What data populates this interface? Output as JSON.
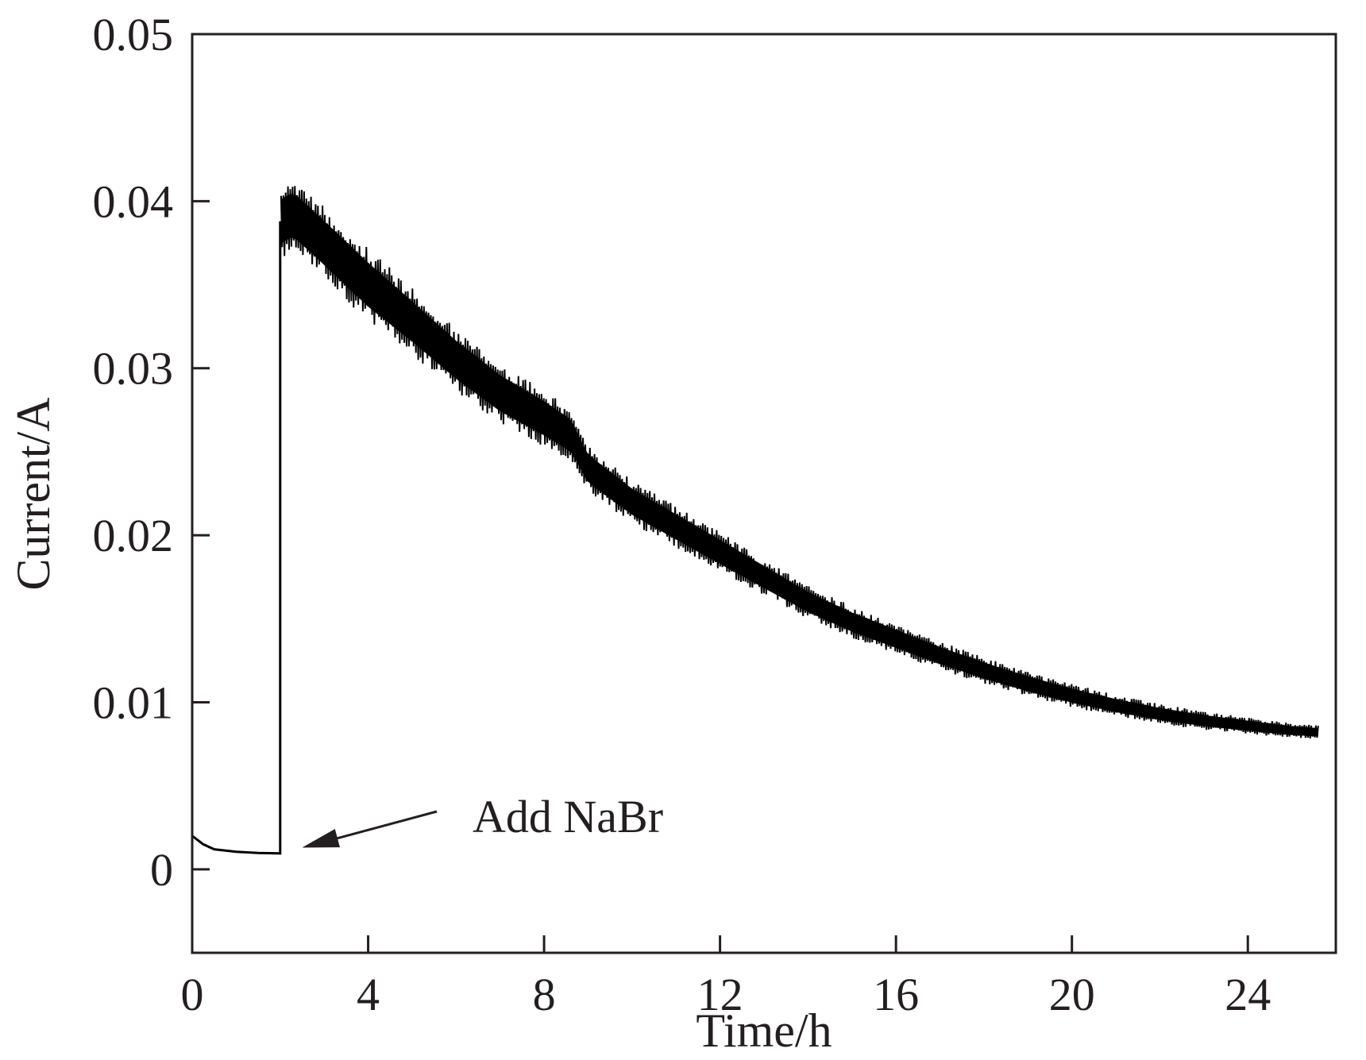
{
  "chart_data": {
    "type": "line",
    "title": "",
    "xlabel": "Time/h",
    "ylabel": "Current/A",
    "xlim": [
      0,
      26
    ],
    "ylim": [
      -0.005,
      0.05
    ],
    "xticks": [
      0,
      4,
      8,
      12,
      16,
      20,
      24
    ],
    "xtick_labels": [
      "0",
      "4",
      "8",
      "12",
      "16",
      "20",
      "24"
    ],
    "yticks": [
      0,
      0.01,
      0.02,
      0.03,
      0.04,
      0.05
    ],
    "ytick_labels": [
      "0",
      "0.01",
      "0.02",
      "0.03",
      "0.04",
      "0.05"
    ],
    "grid": false,
    "series": [
      {
        "color": "#000000",
        "x": [
          0,
          0.25,
          0.5,
          1.0,
          1.5,
          2.0,
          2.02,
          2.3,
          3,
          4,
          5,
          6,
          7,
          8,
          8.6,
          9,
          10,
          11,
          12,
          13,
          14,
          15,
          16,
          17,
          18,
          19,
          20,
          21,
          22,
          23,
          24,
          25,
          25.6
        ],
        "y": [
          0.002,
          0.0015,
          0.0012,
          0.00105,
          0.00098,
          0.00095,
          0.0388,
          0.0392,
          0.0375,
          0.035,
          0.0328,
          0.0305,
          0.0285,
          0.027,
          0.026,
          0.024,
          0.022,
          0.0205,
          0.019,
          0.0175,
          0.016,
          0.0148,
          0.0138,
          0.0128,
          0.0119,
          0.0111,
          0.0104,
          0.0098,
          0.0093,
          0.0089,
          0.0086,
          0.0083,
          0.0082
        ],
        "noise_band": {
          "x": [
            2.02,
            3,
            4,
            5,
            6,
            7,
            8,
            8.6,
            9,
            10,
            12,
            14,
            16,
            18,
            20,
            22,
            24,
            25.6
          ],
          "amplitude": [
            0.0022,
            0.0022,
            0.0022,
            0.002,
            0.0019,
            0.0018,
            0.0017,
            0.0016,
            0.0014,
            0.0013,
            0.0012,
            0.001,
            0.0009,
            0.0008,
            0.0007,
            0.0006,
            0.0005,
            0.0004
          ]
        }
      }
    ],
    "annotations": [
      {
        "text": "Add NaBr",
        "arrow_to": {
          "x": 2.5,
          "y": 0.0013
        }
      }
    ]
  }
}
